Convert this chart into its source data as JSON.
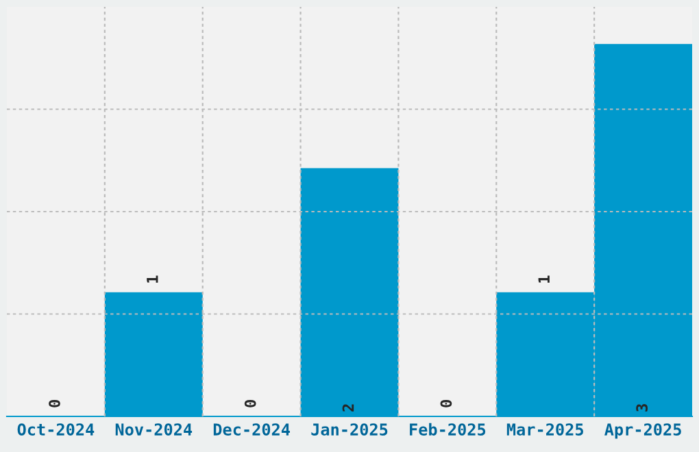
{
  "chart_data": {
    "type": "bar",
    "categories": [
      "Oct-2024",
      "Nov-2024",
      "Dec-2024",
      "Jan-2025",
      "Feb-2025",
      "Mar-2025",
      "Apr-2025"
    ],
    "values": [
      0,
      1,
      0,
      2,
      0,
      1,
      3
    ],
    "color": "#0099cc",
    "ylim": [
      0,
      3.3
    ],
    "yticks": [
      {
        "value": 0.825,
        "label": null
      },
      {
        "value": 1.65,
        "label": null
      },
      {
        "value": 2.475,
        "label": null
      }
    ],
    "tick_labels": "x",
    "data_labels": true,
    "grid": true
  }
}
